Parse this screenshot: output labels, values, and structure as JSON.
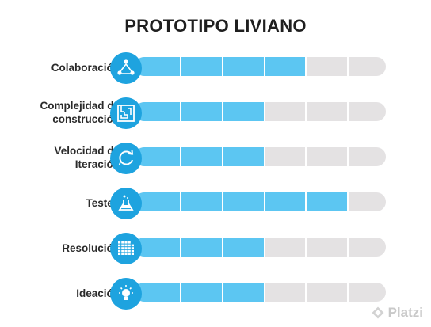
{
  "title": "PROTOTIPO LIVIANO",
  "chart_data": {
    "type": "bar",
    "orientation": "horizontal",
    "segments_total": 6,
    "title": "PROTOTIPO LIVIANO",
    "categories": [
      "Colaboración",
      "Complejidad de construcción",
      "Velocidad de Iteración",
      "Testeo",
      "Resolución",
      "Ideación"
    ],
    "values": [
      4,
      3,
      3,
      5,
      3,
      3
    ],
    "max": 6,
    "colors": {
      "fill": "#5cc6f2",
      "empty": "#e4e2e3",
      "icon_bg": "#1ea3df"
    }
  },
  "rows": [
    {
      "label_lines": [
        "Colaboración"
      ],
      "icon": "people-network-icon"
    },
    {
      "label_lines": [
        "Complejidad de",
        "construcción"
      ],
      "icon": "maze-icon"
    },
    {
      "label_lines": [
        "Velocidad de",
        "Iteración"
      ],
      "icon": "refresh-cycle-icon"
    },
    {
      "label_lines": [
        "Testeo"
      ],
      "icon": "flask-icon"
    },
    {
      "label_lines": [
        "Resolución"
      ],
      "icon": "pixel-grid-icon"
    },
    {
      "label_lines": [
        "Ideación"
      ],
      "icon": "lightbulb-icon"
    }
  ],
  "logo": {
    "text": "Platzi",
    "icon": "platzi-logo-icon"
  }
}
